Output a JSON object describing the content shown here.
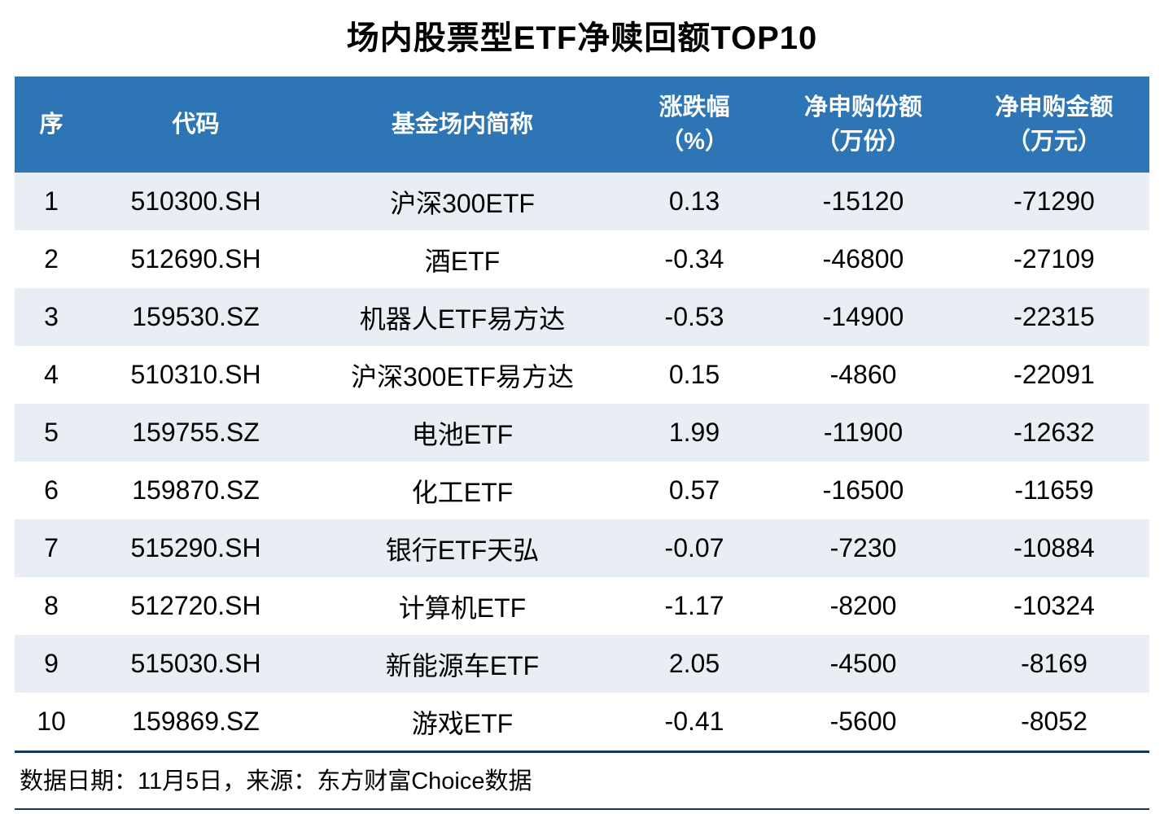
{
  "title": "场内股票型ETF净赎回额TOP10",
  "colors": {
    "header_bg": "#2E75B6",
    "header_text": "#FFFFFF",
    "row_alt_bg": "#E9EDF4",
    "row_bg": "#FFFFFF",
    "rule_color": "#17365D",
    "text_color": "#000000"
  },
  "table": {
    "headers": [
      {
        "label": "序",
        "sub": ""
      },
      {
        "label": "代码",
        "sub": ""
      },
      {
        "label": "基金场内简称",
        "sub": ""
      },
      {
        "label": "涨跌幅",
        "sub": "（%）"
      },
      {
        "label": "净申购份额",
        "sub": "（万份）"
      },
      {
        "label": "净申购金额",
        "sub": "（万元）"
      }
    ],
    "rows": [
      [
        "1",
        "510300.SH",
        "沪深300ETF",
        "0.13",
        "-15120",
        "-71290"
      ],
      [
        "2",
        "512690.SH",
        "酒ETF",
        "-0.34",
        "-46800",
        "-27109"
      ],
      [
        "3",
        "159530.SZ",
        "机器人ETF易方达",
        "-0.53",
        "-14900",
        "-22315"
      ],
      [
        "4",
        "510310.SH",
        "沪深300ETF易方达",
        "0.15",
        "-4860",
        "-22091"
      ],
      [
        "5",
        "159755.SZ",
        "电池ETF",
        "1.99",
        "-11900",
        "-12632"
      ],
      [
        "6",
        "159870.SZ",
        "化工ETF",
        "0.57",
        "-16500",
        "-11659"
      ],
      [
        "7",
        "515290.SH",
        "银行ETF天弘",
        "-0.07",
        "-7230",
        "-10884"
      ],
      [
        "8",
        "512720.SH",
        "计算机ETF",
        "-1.17",
        "-8200",
        "-10324"
      ],
      [
        "9",
        "515030.SH",
        "新能源车ETF",
        "2.05",
        "-4500",
        "-8169"
      ],
      [
        "10",
        "159869.SZ",
        "游戏ETF",
        "-0.41",
        "-5600",
        "-8052"
      ]
    ]
  },
  "footer": "数据日期：11月5日，来源：东方财富Choice数据",
  "chart_data": {
    "type": "table",
    "title": "场内股票型ETF净赎回额TOP10",
    "columns": [
      "序",
      "代码",
      "基金场内简称",
      "涨跌幅（%）",
      "净申购份额（万份）",
      "净申购金额（万元）"
    ],
    "rows": [
      [
        1,
        "510300.SH",
        "沪深300ETF",
        0.13,
        -15120,
        -71290
      ],
      [
        2,
        "512690.SH",
        "酒ETF",
        -0.34,
        -46800,
        -27109
      ],
      [
        3,
        "159530.SZ",
        "机器人ETF易方达",
        -0.53,
        -14900,
        -22315
      ],
      [
        4,
        "510310.SH",
        "沪深300ETF易方达",
        0.15,
        -4860,
        -22091
      ],
      [
        5,
        "159755.SZ",
        "电池ETF",
        1.99,
        -11900,
        -12632
      ],
      [
        6,
        "159870.SZ",
        "化工ETF",
        0.57,
        -16500,
        -11659
      ],
      [
        7,
        "515290.SH",
        "银行ETF天弘",
        -0.07,
        -7230,
        -10884
      ],
      [
        8,
        "512720.SH",
        "计算机ETF",
        -1.17,
        -8200,
        -10324
      ],
      [
        9,
        "515030.SH",
        "新能源车ETF",
        2.05,
        -4500,
        -8169
      ],
      [
        10,
        "159869.SZ",
        "游戏ETF",
        -0.41,
        -5600,
        -8052
      ]
    ],
    "source_note": "数据日期：11月5日，来源：东方财富Choice数据"
  }
}
